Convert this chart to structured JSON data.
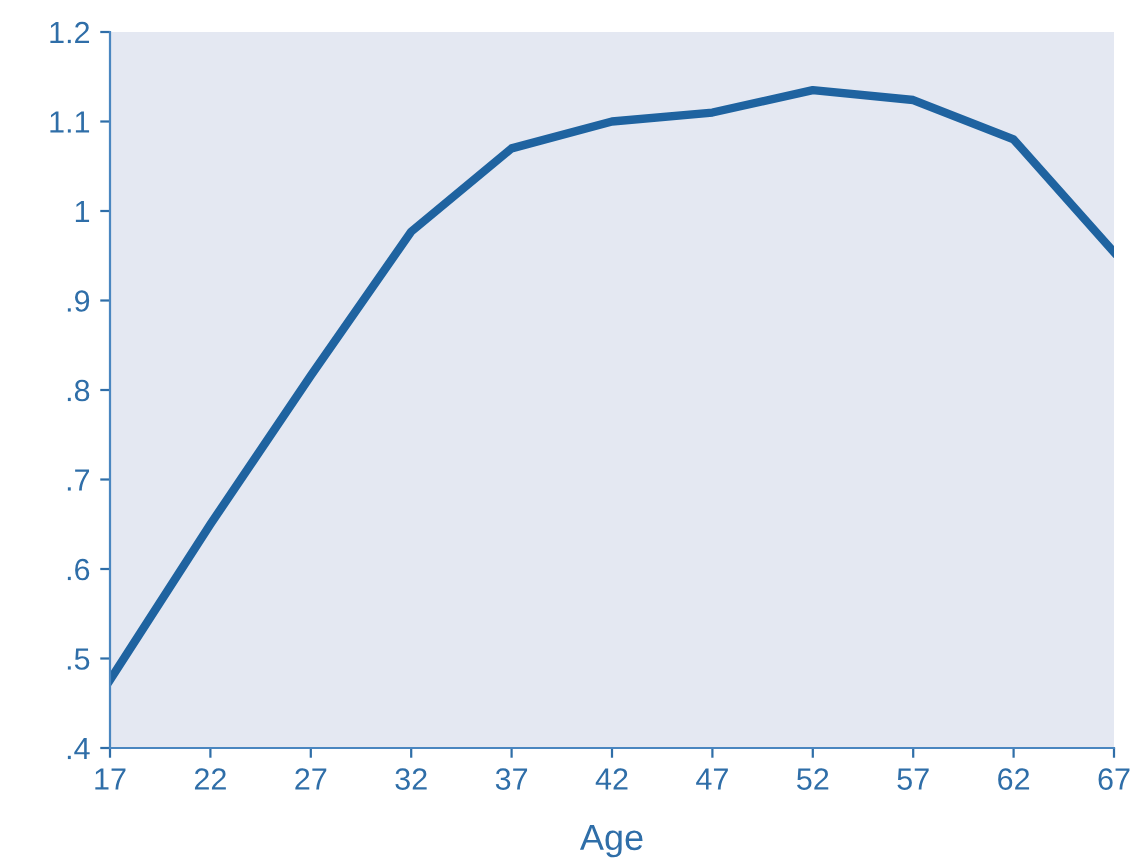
{
  "chart_data": {
    "type": "line",
    "xlabel": "Age",
    "x": [
      17,
      22,
      27,
      32,
      37,
      42,
      47,
      52,
      57,
      62,
      67
    ],
    "series": [
      {
        "color": "#1f63a0",
        "values": [
          0.476,
          0.65,
          0.816,
          0.977,
          1.07,
          1.1,
          1.11,
          1.135,
          1.124,
          1.08,
          0.954
        ]
      }
    ],
    "xlim": [
      17,
      67
    ],
    "xticks": [
      17,
      22,
      27,
      32,
      37,
      42,
      47,
      52,
      57,
      62,
      67
    ],
    "ylim": [
      0.4,
      1.2
    ],
    "yticks": [
      {
        "value": 0.4,
        "label": ".4"
      },
      {
        "value": 0.5,
        "label": ".5"
      },
      {
        "value": 0.6,
        "label": ".6"
      },
      {
        "value": 0.7,
        "label": ".7"
      },
      {
        "value": 0.8,
        "label": ".8"
      },
      {
        "value": 0.9,
        "label": ".9"
      },
      {
        "value": 1,
        "label": "1"
      },
      {
        "value": 1.1,
        "label": "1.1"
      },
      {
        "value": 1.2,
        "label": "1.2"
      }
    ],
    "grid": false,
    "marker": "none",
    "line_style": "solid"
  }
}
